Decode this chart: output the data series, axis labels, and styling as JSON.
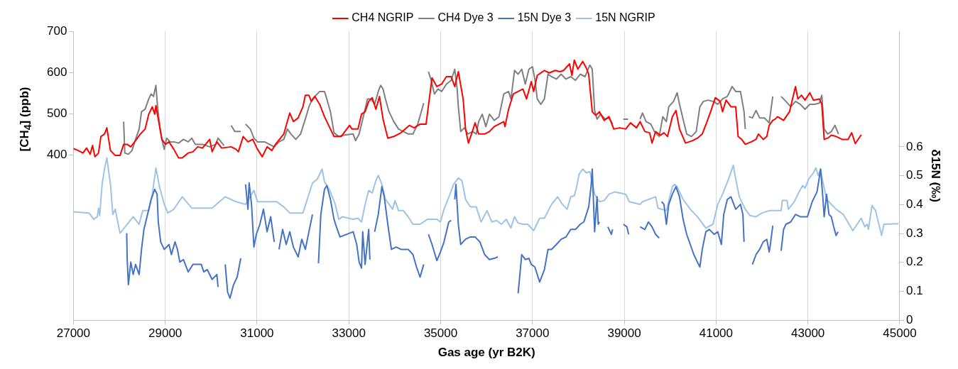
{
  "chart_data": {
    "type": "line",
    "xlabel": "Gas age (yr B2K)",
    "ylabel": "[CH$_{4}$] (ppb)",
    "y2label": "δ15N (‰)",
    "xlim": [
      27000,
      45000
    ],
    "xticks": [
      27000,
      29000,
      31000,
      33000,
      35000,
      37000,
      39000,
      41000,
      43000,
      45000
    ],
    "ylim": [
      0,
      700
    ],
    "yticks": [
      400,
      500,
      600,
      700
    ],
    "y2lim": [
      0,
      1
    ],
    "y2ticks": [
      0,
      0.1,
      0.2,
      0.3,
      0.4,
      0.5,
      0.6
    ],
    "grid": "x",
    "legend": "top",
    "marker": "none",
    "series": [
      {
        "name": "CH4 NGRIP",
        "color": "#ff0000",
        "axis": "y",
        "x": [
          27000,
          27104,
          27208,
          27286,
          27365,
          27417,
          27469,
          27547,
          27599,
          27677,
          27729,
          27807,
          27911,
          28016,
          28094,
          28172,
          28250,
          28354,
          28458,
          28562,
          28641,
          28719,
          28771,
          28797,
          28849,
          28927,
          29005,
          29083,
          29187,
          29292,
          29370,
          29500,
          29604,
          29708,
          29812,
          29969,
          30021,
          30125,
          30229,
          30437,
          30542,
          30594,
          30698,
          30802,
          30906,
          31010,
          31114,
          31219,
          31323,
          31401,
          31583,
          31713,
          31792,
          31896,
          32000,
          32052,
          32130,
          32182,
          32260,
          32364,
          32469,
          32599,
          32677,
          32833,
          33015,
          33068,
          33198,
          33276,
          33354,
          33432,
          33510,
          33589,
          33667,
          33745,
          33849,
          33979,
          34135,
          34318,
          34422,
          34552,
          34682,
          34812,
          34917,
          35021,
          35125,
          35229,
          35307,
          35385,
          35489,
          35542,
          35604,
          35672,
          35750,
          35828,
          35958,
          36062,
          36167,
          36271,
          36375,
          36401,
          36479,
          36583,
          36687,
          36792,
          36870,
          36974,
          37026,
          37104,
          37260,
          37364,
          37495,
          37599,
          37677,
          37807,
          37859,
          37911,
          37989,
          38094,
          38172,
          38224,
          38302,
          38380,
          38458,
          38562,
          38667,
          38771,
          38901,
          39031,
          39135,
          39265,
          39344,
          39448,
          39552,
          39604,
          39682,
          39786,
          39864,
          39942,
          40047,
          40125,
          40203,
          40333,
          40489,
          40593,
          40698,
          40802,
          40880,
          40984,
          41088,
          41140,
          41218,
          41323,
          41427,
          41479,
          41557,
          41635,
          41765,
          41869,
          41921,
          42026,
          42104,
          42156,
          42234,
          42286,
          42338,
          42469,
          42599,
          42677,
          42729,
          42781,
          42859,
          42937,
          43041,
          43119,
          43250,
          43302,
          43354,
          43432,
          43510,
          43614,
          43744,
          43874,
          43953,
          44031,
          44161
        ],
        "values": [
          416,
          411,
          405,
          417,
          402,
          423,
          396,
          405,
          445,
          451,
          466,
          411,
          399,
          399,
          426,
          426,
          420,
          435,
          451,
          463,
          499,
          517,
          499,
          520,
          487,
          438,
          426,
          432,
          414,
          393,
          393,
          405,
          408,
          420,
          417,
          438,
          408,
          432,
          417,
          420,
          414,
          408,
          445,
          432,
          438,
          414,
          396,
          420,
          411,
          426,
          451,
          502,
          481,
          490,
          517,
          545,
          545,
          530,
          542,
          523,
          493,
          463,
          445,
          445,
          472,
          463,
          463,
          499,
          505,
          530,
          539,
          511,
          542,
          487,
          441,
          445,
          454,
          472,
          466,
          475,
          475,
          587,
          566,
          572,
          590,
          590,
          566,
          602,
          536,
          463,
          429,
          451,
          478,
          451,
          451,
          457,
          469,
          475,
          481,
          469,
          511,
          548,
          554,
          560,
          536,
          578,
          554,
          593,
          605,
          599,
          605,
          602,
          605,
          621,
          593,
          630,
          608,
          627,
          611,
          596,
          505,
          496,
          505,
          484,
          493,
          463,
          466,
          463,
          478,
          466,
          481,
          457,
          454,
          429,
          457,
          448,
          454,
          445,
          493,
          508,
          463,
          429,
          435,
          441,
          451,
          481,
          505,
          539,
          530,
          505,
          533,
          517,
          517,
          445,
          438,
          426,
          432,
          438,
          451,
          438,
          445,
          472,
          484,
          487,
          493,
          484,
          505,
          542,
          566,
          536,
          545,
          533,
          551,
          533,
          536,
          523,
          438,
          441,
          448,
          445,
          438,
          438,
          454,
          428,
          449
        ]
      },
      {
        "name": "CH4 Dye 3",
        "color": "#7f7f7f",
        "axis": "y",
        "x": [
          28094,
          28120,
          28198,
          28276,
          28354,
          28432,
          28484,
          28562,
          28641,
          28693,
          28745,
          28797,
          28833,
          28875,
          28927,
          28979,
          29031,
          29109,
          29187,
          29292,
          29396,
          29500,
          29578,
          29656,
          29812,
          29969,
          30099,
          30151,
          30281,
          null,
          30437,
          30515,
          30646,
          null,
          30750,
          30854,
          30932,
          31010,
          31166,
          31271,
          31375,
          31479,
          31583,
          31661,
          31739,
          31844,
          31948,
          32052,
          32130,
          32208,
          32286,
          32364,
          32469,
          32521,
          32599,
          32677,
          32781,
          32885,
          33094,
          33146,
          33224,
          33302,
          33406,
          33484,
          33562,
          33641,
          33693,
          33745,
          33797,
          33875,
          33979,
          34083,
          34187,
          34292,
          34396,
          34500,
          34578,
          34630,
          null,
          34734,
          34786,
          34865,
          34943,
          35021,
          35125,
          35229,
          35307,
          35359,
          35385,
          35437,
          35516,
          35594,
          35698,
          35776,
          35828,
          35906,
          35984,
          36062,
          36167,
          36271,
          36375,
          36479,
          36531,
          36609,
          36687,
          36766,
          36844,
          36922,
          37000,
          37052,
          37104,
          37182,
          37260,
          37338,
          37416,
          37521,
          37625,
          37729,
          37833,
          37937,
          38041,
          38146,
          38250,
          38302,
          38354,
          38406,
          38484,
          38588,
          38667,
          38745,
          null,
          38979,
          39083,
          null,
          39344,
          39396,
          39474,
          39578,
          39656,
          39760,
          39838,
          39916,
          39969,
          40073,
          40151,
          40203,
          40281,
          40359,
          40463,
          40567,
          40646,
          40724,
          40828,
          40932,
          41036,
          41140,
          41244,
          41349,
          41427,
          41531,
          41609,
          41635,
          null,
          41713,
          41791,
          41869,
          41948,
          42052,
          42156,
          42234,
          null,
          42416,
          42521,
          42625,
          42729,
          42833,
          42937,
          43041,
          43146,
          43250,
          43302,
          43354,
          43432,
          43510,
          43588,
          43666
        ],
        "values": [
          481,
          405,
          402,
          411,
          438,
          463,
          505,
          511,
          536,
          548,
          542,
          569,
          517,
          475,
          438,
          414,
          441,
          432,
          432,
          429,
          438,
          432,
          441,
          426,
          426,
          420,
          426,
          441,
          423,
          null,
          472,
          457,
          457,
          null,
          475,
          463,
          441,
          432,
          432,
          426,
          420,
          432,
          438,
          463,
          451,
          438,
          451,
          487,
          517,
          536,
          545,
          554,
          554,
          536,
          505,
          454,
          445,
          448,
          451,
          435,
          451,
          487,
          536,
          536,
          523,
          554,
          569,
          560,
          536,
          505,
          481,
          463,
          457,
          451,
          451,
          475,
          505,
          526,
          null,
          602,
          584,
          548,
          560,
          554,
          572,
          581,
          608,
          560,
          517,
          457,
          466,
          451,
          457,
          451,
          481,
          499,
          469,
          499,
          484,
          493,
          548,
          554,
          536,
          605,
          596,
          608,
          572,
          608,
          614,
          584,
          536,
          523,
          536,
          596,
          590,
          584,
          596,
          584,
          590,
          581,
          596,
          590,
          618,
          608,
          508,
          487,
          499,
          487,
          490,
          475,
          null,
          487,
          487,
          null,
          487,
          502,
          481,
          475,
          457,
          445,
          493,
          481,
          517,
          530,
          551,
          523,
          487,
          451,
          445,
          457,
          517,
          530,
          533,
          530,
          523,
          536,
          542,
          566,
          554,
          554,
          505,
          463,
          null,
          493,
          490,
          508,
          490,
          490,
          478,
          542,
          null,
          542,
          530,
          517,
          530,
          523,
          511,
          523,
          523,
          526,
          545,
          463,
          451,
          457,
          472,
          451
        ]
      },
      {
        "name": "15N Dye 3",
        "color": "#4472c4",
        "axis": "y2",
        "x": [
          28161,
          28172,
          28198,
          28250,
          28302,
          28354,
          28432,
          28484,
          28536,
          28615,
          28693,
          28771,
          28823,
          28849,
          28901,
          28979,
          29083,
          29135,
          29214,
          29266,
          29318,
          29396,
          29500,
          29604,
          29708,
          29786,
          29839,
          29917,
          30021,
          30125,
          30151,
          null,
          30307,
          30359,
          30411,
          30489,
          30567,
          30646,
          null,
          30750,
          30802,
          30828,
          30880,
          30932,
          30984,
          31062,
          31140,
          31219,
          31297,
          31375,
          null,
          31479,
          31557,
          31635,
          31713,
          31792,
          31896,
          31974,
          32052,
          32130,
          32208,
          null,
          32338,
          32390,
          32469,
          32521,
          32599,
          32677,
          32729,
          32807,
          33094,
          33172,
          33224,
          33276,
          33302,
          33354,
          33432,
          33458,
          null,
          33562,
          33641,
          33719,
          33771,
          33849,
          33927,
          34031,
          34135,
          34292,
          34396,
          34474,
          34552,
          34630,
          null,
          34734,
          34812,
          34917,
          34995,
          35073,
          35177,
          35229,
          null,
          35307,
          35333,
          35385,
          35437,
          35542,
          35646,
          35750,
          35854,
          35958,
          36062,
          36167,
          36245,
          null,
          36687,
          36766,
          36844,
          36922,
          36974,
          37052,
          37156,
          37260,
          37338,
          37416,
          37521,
          37625,
          37729,
          37833,
          37937,
          38041,
          38120,
          38224,
          38276,
          38302,
          38354,
          38406,
          38432,
          38458,
          null,
          38641,
          38719,
          38745,
          null,
          38979,
          39057,
          39094,
          null,
          39344,
          39448,
          39526,
          39604,
          39682,
          39760,
          null,
          39812,
          39864,
          39917,
          39969,
          40047,
          40125,
          40203,
          40281,
          40359,
          40437,
          40515,
          40593,
          40646,
          40698,
          40776,
          40854,
          40958,
          41036,
          41114,
          41166,
          41244,
          41323,
          41427,
          41531,
          41583,
          41609,
          null,
          41791,
          41869,
          41948,
          42026,
          42104,
          42156,
          42182,
          42234,
          null,
          42416,
          42469,
          42521,
          42625,
          42729,
          42833,
          42989,
          43093,
          43198,
          43276,
          43328,
          43354,
          43406,
          43458,
          43510,
          43562,
          43614,
          43656
        ],
        "values": [
          0.301,
          0.21,
          0.123,
          0.201,
          0.158,
          0.193,
          0.158,
          0.245,
          0.314,
          0.366,
          0.418,
          0.453,
          0.436,
          0.34,
          0.271,
          0.245,
          0.262,
          0.227,
          0.271,
          0.245,
          0.201,
          0.21,
          0.167,
          0.193,
          0.193,
          0.193,
          0.167,
          0.175,
          0.141,
          0.158,
          0.115,
          null,
          0.193,
          0.097,
          0.076,
          0.123,
          0.149,
          0.214,
          null,
          0.47,
          0.384,
          0.475,
          0.401,
          0.253,
          0.297,
          0.332,
          0.384,
          0.306,
          0.358,
          0.271,
          null,
          0.245,
          0.314,
          0.262,
          0.306,
          0.253,
          0.219,
          0.28,
          0.245,
          0.306,
          0.366,
          null,
          0.197,
          0.366,
          0.453,
          0.466,
          0.418,
          0.349,
          0.323,
          0.288,
          0.306,
          0.262,
          0.201,
          0.18,
          0.306,
          0.193,
          0.314,
          0.21,
          null,
          0.306,
          0.366,
          0.462,
          0.427,
          0.332,
          0.245,
          0.253,
          0.245,
          0.245,
          0.227,
          0.184,
          0.149,
          0.193,
          null,
          0.297,
          0.262,
          0.206,
          0.236,
          0.271,
          0.34,
          0.345,
          null,
          0.418,
          0.47,
          0.332,
          0.262,
          0.28,
          0.288,
          0.288,
          0.271,
          0.227,
          0.21,
          0.214,
          0.219,
          null,
          0.093,
          0.227,
          0.21,
          0.214,
          0.193,
          0.184,
          0.132,
          0.175,
          0.245,
          0.245,
          0.262,
          0.28,
          0.288,
          0.314,
          0.314,
          0.332,
          0.34,
          0.392,
          0.462,
          0.523,
          0.306,
          0.427,
          0.332,
          0.34,
          null,
          0.323,
          0.297,
          0.314,
          null,
          0.332,
          0.323,
          0.297,
          null,
          0.323,
          0.314,
          0.34,
          0.323,
          0.297,
          0.284,
          null,
          0.41,
          0.401,
          0.332,
          0.401,
          0.436,
          0.462,
          0.427,
          0.349,
          0.297,
          0.262,
          0.227,
          0.201,
          0.184,
          0.245,
          0.306,
          0.314,
          0.297,
          0.306,
          0.262,
          0.366,
          0.418,
          0.427,
          0.384,
          0.401,
          0.366,
          0.271,
          null,
          0.193,
          0.227,
          0.245,
          0.271,
          0.28,
          0.236,
          0.262,
          0.327,
          null,
          0.24,
          0.314,
          0.332,
          0.34,
          0.366,
          0.358,
          0.358,
          0.41,
          0.444,
          0.523,
          0.418,
          0.358,
          0.436,
          0.366,
          0.358,
          0.323,
          0.293,
          0.306
        ]
      },
      {
        "name": "15N NGRIP",
        "color": "#9dc3e6",
        "axis": "y2",
        "x": [
          27000,
          27339,
          27443,
          27521,
          27547,
          27573,
          27625,
          27677,
          27729,
          27755,
          27807,
          27859,
          27911,
          28016,
          28172,
          28302,
          28432,
          28510,
          28641,
          28719,
          28797,
          28875,
          28979,
          29057,
          29187,
          29370,
          29578,
          30021,
          30307,
          30542,
          30750,
          30932,
          31010,
          31166,
          31427,
          31583,
          31713,
          32000,
          32078,
          32208,
          32312,
          32417,
          32469,
          32573,
          32703,
          32781,
          32859,
          33094,
          33198,
          33276,
          33354,
          33432,
          33510,
          33589,
          33641,
          33719,
          33797,
          33875,
          33953,
          34005,
          34083,
          34187,
          34292,
          34396,
          34552,
          34708,
          34917,
          34995,
          35073,
          35203,
          35281,
          35385,
          35464,
          35542,
          35646,
          35776,
          35880,
          36010,
          36115,
          36219,
          36323,
          36427,
          36531,
          36609,
          36687,
          36792,
          36896,
          37026,
          37156,
          37260,
          37416,
          37547,
          37651,
          37755,
          37833,
          37911,
          37963,
          38015,
          38094,
          38172,
          38250,
          38354,
          38458,
          38562,
          38667,
          38797,
          39031,
          39109,
          39344,
          39396,
          39682,
          39734,
          39917,
          40047,
          40099,
          40151,
          40281,
          40437,
          40593,
          40776,
          40932,
          41036,
          41140,
          41271,
          41375,
          41427,
          41505,
          41635,
          41739,
          41869,
          42000,
          42156,
          42416,
          42442,
          42547,
          42573,
          42703,
          42807,
          42885,
          42937,
          43015,
          43119,
          43172,
          43224,
          43276,
          43302,
          43406,
          43614,
          43770,
          43979,
          44161,
          44239,
          44291,
          44317,
          44396,
          44474,
          44604,
          44656,
          44969
        ],
        "values": [
          0.375,
          0.371,
          0.349,
          0.358,
          0.388,
          0.362,
          0.47,
          0.523,
          0.562,
          0.531,
          0.47,
          0.366,
          0.384,
          0.301,
          0.332,
          0.358,
          0.332,
          0.379,
          0.379,
          0.436,
          0.527,
          0.462,
          0.401,
          0.371,
          0.384,
          0.427,
          0.388,
          0.388,
          0.427,
          0.41,
          0.401,
          0.449,
          0.41,
          0.41,
          0.41,
          0.392,
          0.371,
          0.371,
          0.41,
          0.475,
          0.488,
          0.523,
          0.479,
          0.453,
          0.401,
          0.349,
          0.358,
          0.349,
          0.353,
          0.34,
          0.401,
          0.449,
          0.44,
          0.483,
          0.501,
          0.47,
          0.418,
          0.401,
          0.384,
          0.414,
          0.379,
          0.379,
          0.358,
          0.332,
          0.332,
          0.349,
          0.349,
          0.34,
          0.384,
          0.436,
          0.47,
          0.492,
          0.483,
          0.418,
          0.392,
          0.392,
          0.34,
          0.379,
          0.34,
          0.345,
          0.332,
          0.349,
          0.319,
          0.358,
          0.336,
          0.332,
          0.332,
          0.31,
          0.353,
          0.353,
          0.401,
          0.427,
          0.401,
          0.384,
          0.427,
          0.431,
          0.462,
          0.505,
          0.523,
          0.51,
          0.514,
          0.436,
          0.41,
          0.414,
          0.436,
          0.444,
          0.436,
          0.41,
          0.401,
          0.41,
          0.427,
          0.388,
          0.379,
          0.462,
          0.47,
          0.462,
          0.418,
          0.384,
          0.358,
          0.319,
          0.332,
          0.401,
          0.436,
          0.488,
          0.536,
          0.488,
          0.427,
          0.384,
          0.362,
          0.358,
          0.371,
          0.379,
          0.379,
          0.414,
          0.414,
          0.384,
          0.41,
          0.444,
          0.466,
          0.457,
          0.488,
          0.51,
          0.527,
          0.501,
          0.523,
          0.497,
          0.418,
          0.384,
          0.366,
          0.31,
          0.353,
          0.323,
          0.332,
          0.314,
          0.397,
          0.379,
          0.293,
          0.332,
          0.334
        ]
      }
    ]
  }
}
